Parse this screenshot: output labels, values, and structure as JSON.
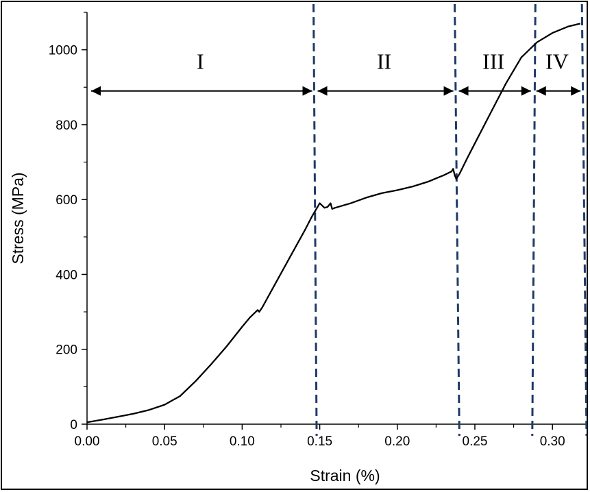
{
  "chart_data": {
    "type": "line",
    "xlabel": "Strain (%)",
    "ylabel": "Stress (MPa)",
    "xlim": [
      0.0,
      0.322
    ],
    "ylim": [
      0,
      1100
    ],
    "xticks": [
      0.0,
      0.05,
      0.1,
      0.15,
      0.2,
      0.25,
      0.3
    ],
    "xtick_labels": [
      "0.00",
      "0.05",
      "0.10",
      "0.15",
      "0.20",
      "0.25",
      "0.30"
    ],
    "yticks": [
      0,
      200,
      400,
      600,
      800,
      1000
    ],
    "ytick_labels": [
      "0",
      "200",
      "400",
      "600",
      "800",
      "1000"
    ],
    "grid": false,
    "series": [
      {
        "x": [
          0.0,
          0.01,
          0.02,
          0.03,
          0.04,
          0.05,
          0.06,
          0.07,
          0.08,
          0.09,
          0.1,
          0.105,
          0.11,
          0.111,
          0.113,
          0.12,
          0.13,
          0.14,
          0.145,
          0.15,
          0.153,
          0.155,
          0.157,
          0.158,
          0.16,
          0.17,
          0.18,
          0.19,
          0.2,
          0.21,
          0.22,
          0.23,
          0.235,
          0.236,
          0.237,
          0.238,
          0.24,
          0.245,
          0.25,
          0.26,
          0.27,
          0.28,
          0.29,
          0.3,
          0.31,
          0.318
        ],
        "y": [
          5,
          12,
          20,
          28,
          38,
          52,
          75,
          115,
          160,
          208,
          260,
          285,
          305,
          300,
          312,
          365,
          440,
          515,
          555,
          590,
          578,
          580,
          590,
          575,
          578,
          590,
          605,
          617,
          625,
          635,
          648,
          665,
          675,
          682,
          665,
          655,
          668,
          710,
          750,
          830,
          910,
          980,
          1020,
          1045,
          1062,
          1070
        ]
      }
    ],
    "regions": [
      {
        "label": "I",
        "x_start": 0.0,
        "x_end": 0.146
      },
      {
        "label": "II",
        "x_start": 0.146,
        "x_end": 0.237
      },
      {
        "label": "III",
        "x_start": 0.237,
        "x_end": 0.287
      },
      {
        "label": "IV",
        "x_start": 0.287,
        "x_end": 0.319
      }
    ],
    "arrow_y": 890,
    "boundaries": [
      {
        "x_top": 0.146,
        "x_bottom": 0.148
      },
      {
        "x_top": 0.237,
        "x_bottom": 0.24
      },
      {
        "x_top": 0.289,
        "x_bottom": 0.287
      },
      {
        "x_top": 0.319,
        "x_bottom": 0.322
      }
    ],
    "line_color": "#000000",
    "boundary_color": "#1f3a68"
  }
}
